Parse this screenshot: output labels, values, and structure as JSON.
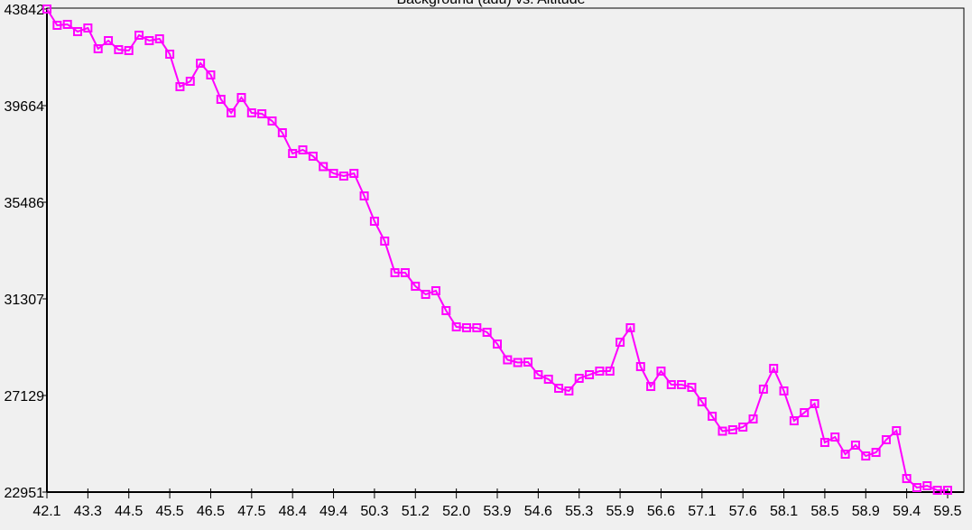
{
  "chart_data": {
    "type": "line",
    "title": "Background (adu) vs. Altitude",
    "xlabel": "",
    "ylabel": "",
    "x_tick_labels": [
      "42.1",
      "43.3",
      "44.5",
      "45.5",
      "46.5",
      "47.5",
      "48.4",
      "49.4",
      "50.3",
      "51.2",
      "52.0",
      "53.9",
      "54.6",
      "55.3",
      "55.9",
      "56.6",
      "57.1",
      "57.6",
      "58.1",
      "58.5",
      "58.9",
      "59.4",
      "59.5"
    ],
    "x_tick_every_n_points": 4,
    "y_tick_labels": [
      "43842",
      "39664",
      "35486",
      "31307",
      "27129",
      "22951"
    ],
    "ylim": [
      22951,
      43842
    ],
    "grid": false,
    "legend": "none",
    "marker": "hollow-square",
    "series": [
      {
        "color": "#ff00ff",
        "values": [
          43842,
          43139,
          43178,
          42866,
          43022,
          42124,
          42475,
          42085,
          42046,
          42710,
          42475,
          42553,
          41890,
          40484,
          40718,
          41499,
          40991,
          39937,
          39351,
          40015,
          39351,
          39312,
          39000,
          38492,
          37594,
          37750,
          37477,
          37028,
          36735,
          36618,
          36735,
          35759,
          34665,
          33806,
          32439,
          32439,
          31853,
          31502,
          31658,
          30799,
          30096,
          30057,
          30057,
          29862,
          29354,
          28671,
          28554,
          28573,
          28027,
          27831,
          27441,
          27324,
          27871,
          28027,
          28183,
          28183,
          29432,
          30057,
          28378,
          27519,
          28183,
          27597,
          27597,
          27480,
          26855,
          26230,
          25586,
          25645,
          25762,
          26113,
          27402,
          28300,
          27324,
          26035,
          26386,
          26777,
          25098,
          25332,
          24590,
          24981,
          24512,
          24668,
          25215,
          25605,
          23536,
          23146,
          23224,
          23029,
          23029
        ]
      }
    ]
  }
}
